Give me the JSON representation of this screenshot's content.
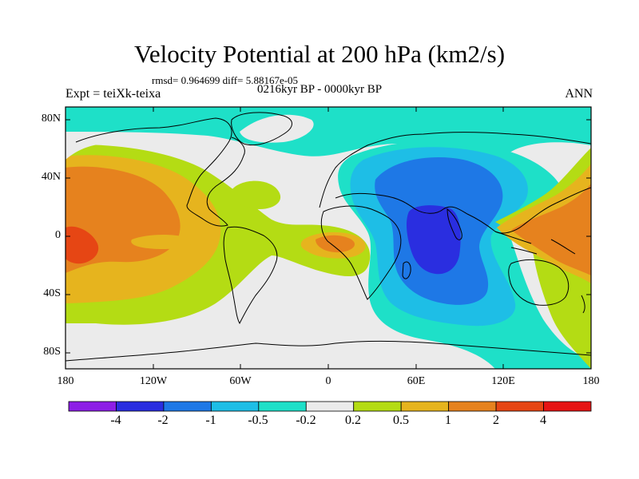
{
  "plot": {
    "title": "Velocity Potential at 200 hPa (km2/s)",
    "stats_line": "rmsd= 0.964699 diff= 5.88167e-05",
    "left_label": "Expt = teiXk-teixa",
    "center_label": "0216kyr BP - 0000kyr BP",
    "right_label": "ANN"
  },
  "axes": {
    "lat_ticks": [
      "80N",
      "40N",
      "0",
      "40S",
      "80S"
    ],
    "lon_ticks": [
      "180",
      "120W",
      "60W",
      "0",
      "60E",
      "120E",
      "180"
    ]
  },
  "colorbar": {
    "labels": [
      "-4",
      "-2",
      "-1",
      "-0.5",
      "-0.2",
      "0.2",
      "0.5",
      "1",
      "2",
      "4"
    ],
    "colors": [
      "#8d1ee6",
      "#2a2ee0",
      "#1e78e6",
      "#1ebee6",
      "#1ee0c8",
      "#ebebeb",
      "#b4dc14",
      "#e6b41e",
      "#e6821e",
      "#e64614",
      "#e61414"
    ]
  }
}
